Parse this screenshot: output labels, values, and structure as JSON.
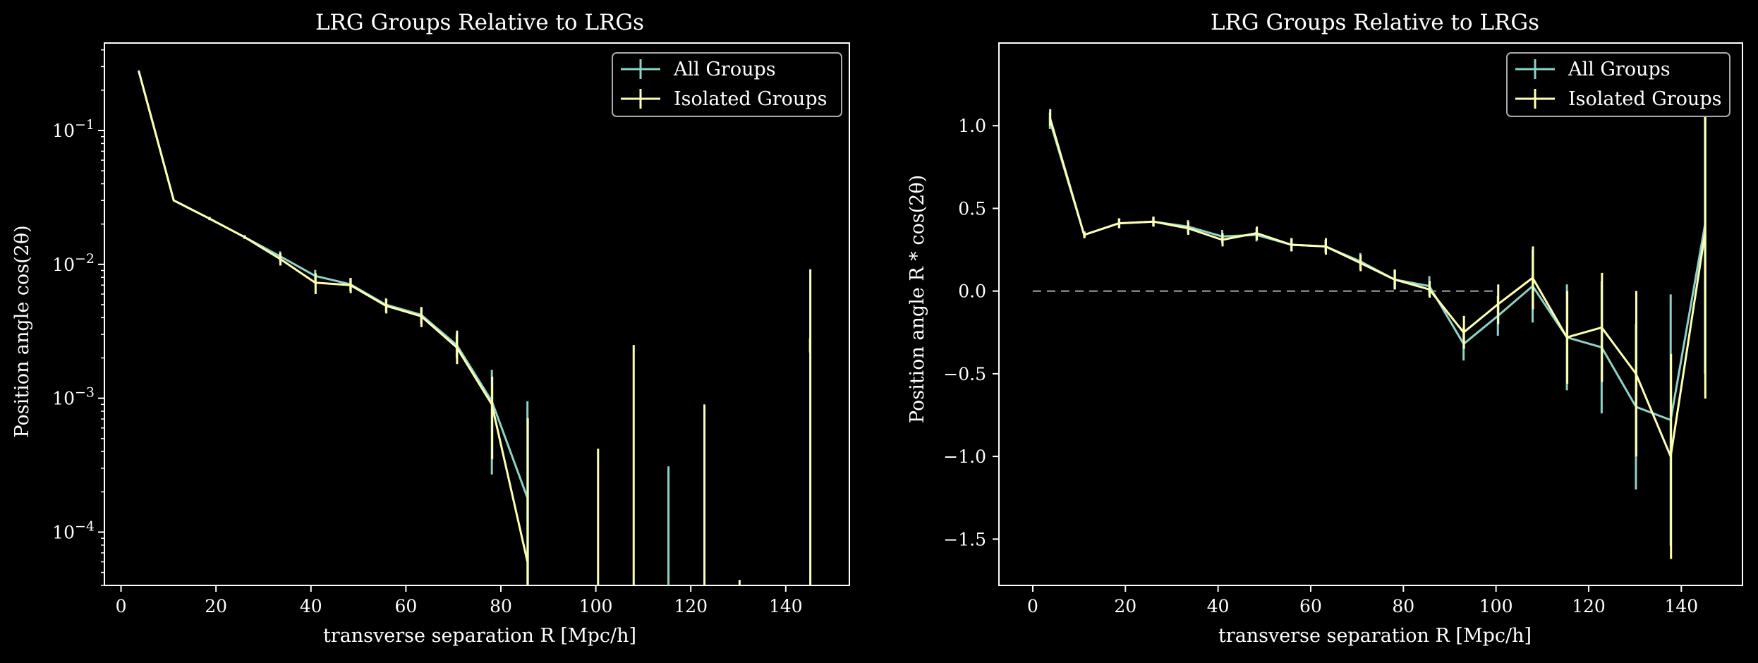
{
  "figure": {
    "background": "#000000",
    "foreground": "#ffffff"
  },
  "chart_data": [
    {
      "type": "line",
      "title": "LRG Groups Relative to LRGs",
      "xlabel": "transverse separation R [Mpc/h]",
      "ylabel": "Position angle cos(2θ)",
      "yscale": "log",
      "xlim": [
        -3.5,
        153.4
      ],
      "ylim": [
        4e-05,
        0.45
      ],
      "xticks": [
        0,
        20,
        40,
        60,
        80,
        100,
        120,
        140
      ],
      "xticklabels": [
        "0",
        "20",
        "40",
        "60",
        "80",
        "100",
        "120",
        "140"
      ],
      "yticks": [
        0.0001,
        0.001,
        0.01,
        0.1
      ],
      "yticklabels": [
        "10",
        "10",
        "10",
        "10"
      ],
      "yticksuper": [
        "−4",
        "−3",
        "−2",
        "−1"
      ],
      "legend": "upper right",
      "grid": false,
      "series": [
        {
          "name": "All Groups",
          "color": "#8dd3c7",
          "x": [
            3.7,
            11.1,
            18.6,
            26.0,
            33.5,
            40.9,
            48.3,
            55.8,
            63.2,
            70.7,
            78.1,
            85.6,
            93.0,
            100.4,
            107.9,
            115.3,
            122.8,
            130.2,
            137.7,
            145.1
          ],
          "y": [
            0.28,
            0.03,
            0.022,
            0.016,
            0.0115,
            0.0082,
            0.0071,
            0.005,
            0.0042,
            0.0025,
            0.00095,
            0.00018,
            null,
            null,
            null,
            null,
            null,
            null,
            null,
            0.0025
          ],
          "err_low": [
            null,
            null,
            0.0006,
            0.0005,
            0.001,
            0.0009,
            0.0008,
            0.0006,
            0.0006,
            0.0005,
            0.00068,
            0.00018,
            null,
            null,
            null,
            null,
            null,
            null,
            null,
            0.0003
          ],
          "err_high": [
            null,
            null,
            0.0006,
            0.0005,
            0.001,
            0.0009,
            0.0008,
            0.0006,
            0.0006,
            0.0005,
            0.00068,
            0.00077,
            null,
            null,
            null,
            0.00031,
            null,
            null,
            null,
            0.0003
          ]
        },
        {
          "name": "Isolated Groups",
          "color": "#ffffb3",
          "x": [
            3.7,
            11.1,
            18.6,
            26.0,
            33.5,
            40.9,
            48.3,
            55.8,
            63.2,
            70.7,
            78.1,
            85.6,
            93.0,
            100.4,
            107.9,
            115.3,
            122.8,
            130.2,
            137.7,
            145.1
          ],
          "y": [
            0.28,
            0.03,
            0.022,
            0.016,
            0.011,
            0.0073,
            0.007,
            0.0049,
            0.0041,
            0.0024,
            0.0009,
            6e-05,
            null,
            null,
            null,
            null,
            null,
            null,
            null,
            null
          ],
          "err_low": [
            null,
            null,
            0.0006,
            0.0005,
            0.0012,
            0.0013,
            0.0009,
            0.0006,
            0.0007,
            0.0006,
            0.00055,
            6e-05,
            null,
            null,
            null,
            null,
            null,
            null,
            null,
            null
          ],
          "err_high": [
            null,
            null,
            0.0006,
            0.0005,
            0.0012,
            0.0013,
            0.0009,
            0.0006,
            0.0007,
            0.0008,
            0.00055,
            0.00065,
            null,
            0.00042,
            0.0025,
            null,
            0.0009,
            4.4e-05,
            null,
            0.0092
          ]
        }
      ]
    },
    {
      "type": "line",
      "title": "LRG Groups Relative to LRGs",
      "xlabel": "transverse separation R [Mpc/h]",
      "ylabel": "Position angle R * cos(2θ)",
      "yscale": "linear",
      "xlim": [
        -7.3,
        153.2
      ],
      "ylim": [
        -1.78,
        1.5
      ],
      "xticks": [
        0,
        20,
        40,
        60,
        80,
        100,
        120,
        140
      ],
      "xticklabels": [
        "0",
        "20",
        "40",
        "60",
        "80",
        "100",
        "120",
        "140"
      ],
      "yticks": [
        -1.5,
        -1.0,
        -0.5,
        0.0,
        0.5,
        1.0
      ],
      "yticklabels": [
        "−1.5",
        "−1.0",
        "−0.5",
        "0.0",
        "0.5",
        "1.0"
      ],
      "reference_line": {
        "y": 0,
        "x_range": [
          0,
          100
        ],
        "style": "dashed",
        "color": "#cccccc"
      },
      "legend": "upper right",
      "grid": false,
      "series": [
        {
          "name": "All Groups",
          "color": "#8dd3c7",
          "x": [
            3.7,
            11.1,
            18.6,
            26.0,
            33.5,
            40.9,
            48.3,
            55.8,
            63.2,
            70.7,
            78.1,
            85.6,
            93.0,
            100.4,
            107.9,
            115.3,
            122.8,
            130.2,
            137.7,
            145.1
          ],
          "y": [
            1.03,
            0.34,
            0.41,
            0.42,
            0.39,
            0.33,
            0.34,
            0.28,
            0.27,
            0.18,
            0.07,
            0.03,
            -0.32,
            -0.15,
            0.03,
            -0.28,
            -0.34,
            -0.7,
            -0.78,
            0.4
          ],
          "err": [
            0.05,
            0.02,
            0.03,
            0.03,
            0.04,
            0.04,
            0.04,
            0.04,
            0.04,
            0.05,
            0.06,
            0.06,
            0.1,
            0.12,
            0.22,
            0.32,
            0.4,
            0.5,
            0.76,
            0.9
          ]
        },
        {
          "name": "Isolated Groups",
          "color": "#ffffb3",
          "x": [
            3.7,
            11.1,
            18.6,
            26.0,
            33.5,
            40.9,
            48.3,
            55.8,
            63.2,
            70.7,
            78.1,
            85.6,
            93.0,
            100.4,
            107.9,
            115.3,
            122.8,
            130.2,
            137.7,
            145.1
          ],
          "y": [
            1.05,
            0.34,
            0.41,
            0.42,
            0.38,
            0.31,
            0.35,
            0.28,
            0.27,
            0.17,
            0.07,
            0.01,
            -0.25,
            -0.08,
            0.08,
            -0.28,
            -0.22,
            -0.5,
            -1.0,
            0.35
          ],
          "err": [
            0.05,
            0.02,
            0.03,
            0.03,
            0.04,
            0.04,
            0.04,
            0.04,
            0.05,
            0.05,
            0.06,
            0.05,
            0.1,
            0.12,
            0.19,
            0.28,
            0.33,
            0.5,
            0.62,
            1.0
          ]
        }
      ]
    }
  ]
}
